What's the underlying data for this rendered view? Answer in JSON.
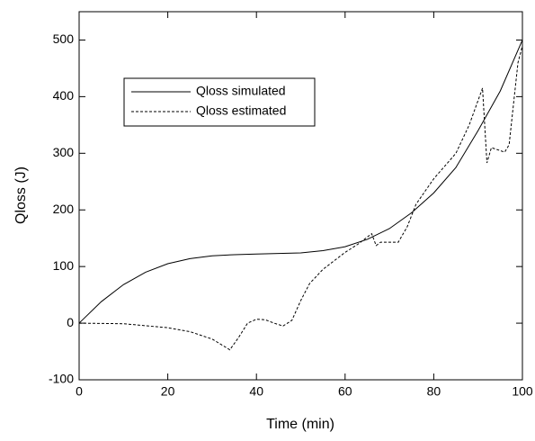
{
  "chart_data": {
    "type": "line",
    "xlabel": "Time (min)",
    "ylabel": "Qloss (J)",
    "xlim": [
      0,
      100
    ],
    "xticks": [
      0,
      20,
      40,
      60,
      80,
      100
    ],
    "ylim": [
      -100,
      550
    ],
    "yticks": [
      -100,
      0,
      100,
      200,
      300,
      400,
      500
    ],
    "legend": "upper-left",
    "series": [
      {
        "name": "Qloss simulated",
        "color": "#000000",
        "linestyle": "solid",
        "x": [
          0,
          5,
          10,
          15,
          20,
          25,
          30,
          35,
          40,
          45,
          50,
          55,
          60,
          65,
          70,
          75,
          80,
          85,
          90,
          95,
          100
        ],
        "values": [
          0,
          38,
          68,
          90,
          105,
          114,
          119,
          121,
          122,
          123,
          124,
          128,
          135,
          148,
          167,
          195,
          230,
          275,
          340,
          410,
          500
        ]
      },
      {
        "name": "Qloss estimated",
        "color": "#000000",
        "linestyle": "dashed",
        "x": [
          0,
          10,
          20,
          25,
          30,
          34,
          36,
          38,
          40,
          42,
          44,
          46,
          48,
          50,
          52,
          55,
          60,
          63,
          66,
          67,
          68,
          72,
          74,
          76,
          80,
          85,
          88,
          91,
          92,
          93,
          96,
          97,
          99,
          100
        ],
        "values": [
          0,
          -1,
          -8,
          -15,
          -28,
          -47,
          -25,
          0,
          7,
          6,
          0,
          -5,
          5,
          40,
          70,
          95,
          125,
          140,
          158,
          137,
          143,
          143,
          170,
          210,
          255,
          300,
          350,
          415,
          283,
          310,
          302,
          315,
          460,
          490
        ]
      }
    ]
  }
}
